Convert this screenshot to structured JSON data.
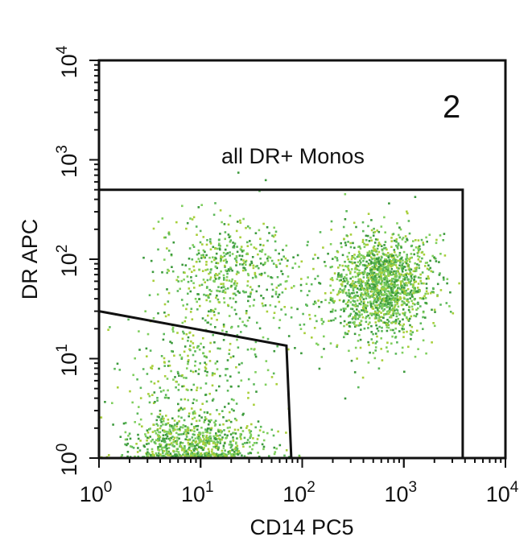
{
  "chart_data": {
    "type": "scatter",
    "x_scale": "log",
    "y_scale": "log",
    "xlim": [
      1,
      10000
    ],
    "ylim": [
      1,
      10000
    ],
    "xlabel": "CD14 PC5",
    "ylabel": "DR APC",
    "x_ticks": [
      {
        "value": 1,
        "base": "10",
        "exp": "0"
      },
      {
        "value": 10,
        "base": "10",
        "exp": "1"
      },
      {
        "value": 100,
        "base": "10",
        "exp": "2"
      },
      {
        "value": 1000,
        "base": "10",
        "exp": "3"
      },
      {
        "value": 10000,
        "base": "10",
        "exp": "4"
      }
    ],
    "y_ticks": [
      {
        "value": 1,
        "base": "10",
        "exp": "0"
      },
      {
        "value": 10,
        "base": "10",
        "exp": "1"
      },
      {
        "value": 100,
        "base": "10",
        "exp": "2"
      },
      {
        "value": 1000,
        "base": "10",
        "exp": "3"
      },
      {
        "value": 10000,
        "base": "10",
        "exp": "4"
      }
    ],
    "panel_label": "2",
    "point_colors": [
      "#5cb85a",
      "#7fcf5e",
      "#3c9a3c",
      "#a8cf3a"
    ],
    "gates": [
      {
        "label": "all DR+ Monos",
        "points": [
          [
            1,
            500
          ],
          [
            3800,
            500
          ],
          [
            3800,
            1
          ]
        ]
      },
      {
        "label": "",
        "points": [
          [
            1,
            30
          ],
          [
            70,
            13.5
          ],
          [
            78,
            1
          ]
        ]
      }
    ],
    "populations": [
      {
        "name": "",
        "count": 1500,
        "center": [
          620,
          55
        ],
        "spread": [
          0.24,
          0.26
        ]
      },
      {
        "name": "",
        "count": 450,
        "center": [
          18,
          80
        ],
        "spread": [
          0.32,
          0.27
        ]
      },
      {
        "name": "",
        "count": 700,
        "center": [
          9,
          1.35
        ],
        "spread": [
          0.32,
          0.14
        ]
      },
      {
        "name": "",
        "count": 350,
        "center": [
          8,
          7
        ],
        "spread": [
          0.33,
          0.42
        ]
      },
      {
        "name": "",
        "count": 120,
        "center": [
          150,
          30
        ],
        "spread": [
          0.35,
          0.35
        ]
      }
    ]
  }
}
